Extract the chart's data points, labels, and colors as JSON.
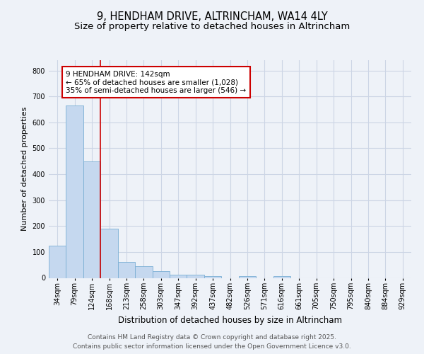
{
  "title": "9, HENDHAM DRIVE, ALTRINCHAM, WA14 4LY",
  "subtitle": "Size of property relative to detached houses in Altrincham",
  "xlabel": "Distribution of detached houses by size in Altrincham",
  "ylabel": "Number of detached properties",
  "categories": [
    "34sqm",
    "79sqm",
    "124sqm",
    "168sqm",
    "213sqm",
    "258sqm",
    "303sqm",
    "347sqm",
    "392sqm",
    "437sqm",
    "482sqm",
    "526sqm",
    "571sqm",
    "616sqm",
    "661sqm",
    "705sqm",
    "750sqm",
    "795sqm",
    "840sqm",
    "884sqm",
    "929sqm"
  ],
  "values": [
    125,
    665,
    450,
    190,
    62,
    45,
    27,
    11,
    13,
    7,
    0,
    7,
    0,
    7,
    0,
    0,
    0,
    0,
    0,
    0,
    0
  ],
  "bar_color": "#c5d8ef",
  "bar_edge_color": "#7aafd4",
  "grid_color": "#ccd5e5",
  "background_color": "#eef2f8",
  "plot_bg_color": "#eef2f8",
  "vline_x": 2.5,
  "vline_color": "#cc0000",
  "annotation_text": "9 HENDHAM DRIVE: 142sqm\n← 65% of detached houses are smaller (1,028)\n35% of semi-detached houses are larger (546) →",
  "annotation_box_color": "#cc0000",
  "annotation_fontsize": 7.5,
  "ylim": [
    0,
    840
  ],
  "yticks": [
    0,
    100,
    200,
    300,
    400,
    500,
    600,
    700,
    800
  ],
  "footer_line1": "Contains HM Land Registry data © Crown copyright and database right 2025.",
  "footer_line2": "Contains public sector information licensed under the Open Government Licence v3.0.",
  "title_fontsize": 10.5,
  "subtitle_fontsize": 9.5,
  "xlabel_fontsize": 8.5,
  "ylabel_fontsize": 8,
  "tick_fontsize": 7,
  "footer_fontsize": 6.5
}
